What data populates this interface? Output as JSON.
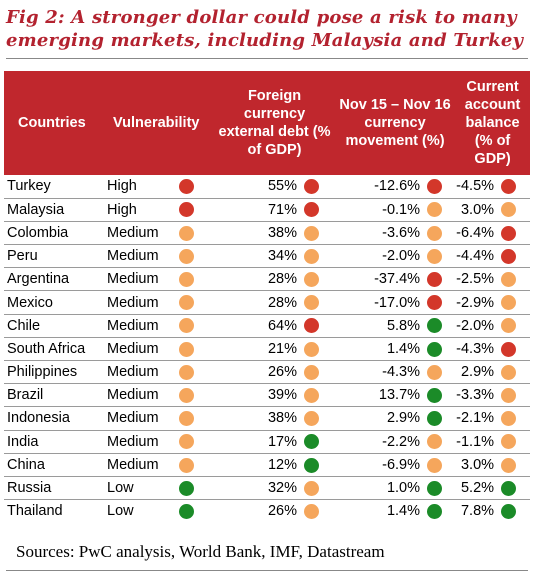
{
  "title": "Fig 2: A stronger dollar could pose a risk to many emerging markets, including Malaysia and Turkey",
  "headers": {
    "countries": "Countries",
    "vulnerability": "Vulnerability",
    "debt": "Foreign currency external debt (% of GDP)",
    "currency": "Nov 15 – Nov 16 currency movement (%)",
    "account": "Current account balance (% of GDP)"
  },
  "colors": {
    "red": "#d3372a",
    "amber": "#f5a65c",
    "green": "#1b8b28",
    "header": "#c0272d",
    "title": "#b3222f"
  },
  "rows": [
    {
      "country": "Turkey",
      "vulnerability": "High",
      "vuln_dot": "red",
      "debt": "55%",
      "debt_dot": "red",
      "currency": "-12.6%",
      "currency_dot": "red",
      "account": "-4.5%",
      "account_dot": "red"
    },
    {
      "country": "Malaysia",
      "vulnerability": "High",
      "vuln_dot": "red",
      "debt": "71%",
      "debt_dot": "red",
      "currency": "-0.1%",
      "currency_dot": "amber",
      "account": "3.0%",
      "account_dot": "amber"
    },
    {
      "country": "Colombia",
      "vulnerability": "Medium",
      "vuln_dot": "amber",
      "debt": "38%",
      "debt_dot": "amber",
      "currency": "-3.6%",
      "currency_dot": "amber",
      "account": "-6.4%",
      "account_dot": "red"
    },
    {
      "country": "Peru",
      "vulnerability": "Medium",
      "vuln_dot": "amber",
      "debt": "34%",
      "debt_dot": "amber",
      "currency": "-2.0%",
      "currency_dot": "amber",
      "account": "-4.4%",
      "account_dot": "red"
    },
    {
      "country": "Argentina",
      "vulnerability": "Medium",
      "vuln_dot": "amber",
      "debt": "28%",
      "debt_dot": "amber",
      "currency": "-37.4%",
      "currency_dot": "red",
      "account": "-2.5%",
      "account_dot": "amber"
    },
    {
      "country": "Mexico",
      "vulnerability": "Medium",
      "vuln_dot": "amber",
      "debt": "28%",
      "debt_dot": "amber",
      "currency": "-17.0%",
      "currency_dot": "red",
      "account": "-2.9%",
      "account_dot": "amber"
    },
    {
      "country": "Chile",
      "vulnerability": "Medium",
      "vuln_dot": "amber",
      "debt": "64%",
      "debt_dot": "red",
      "currency": "5.8%",
      "currency_dot": "green",
      "account": "-2.0%",
      "account_dot": "amber"
    },
    {
      "country": "South Africa",
      "vulnerability": "Medium",
      "vuln_dot": "amber",
      "debt": "21%",
      "debt_dot": "amber",
      "currency": "1.4%",
      "currency_dot": "green",
      "account": "-4.3%",
      "account_dot": "red"
    },
    {
      "country": "Philippines",
      "vulnerability": "Medium",
      "vuln_dot": "amber",
      "debt": "26%",
      "debt_dot": "amber",
      "currency": "-4.3%",
      "currency_dot": "amber",
      "account": "2.9%",
      "account_dot": "amber"
    },
    {
      "country": "Brazil",
      "vulnerability": "Medium",
      "vuln_dot": "amber",
      "debt": "39%",
      "debt_dot": "amber",
      "currency": "13.7%",
      "currency_dot": "green",
      "account": "-3.3%",
      "account_dot": "amber"
    },
    {
      "country": "Indonesia",
      "vulnerability": "Medium",
      "vuln_dot": "amber",
      "debt": "38%",
      "debt_dot": "amber",
      "currency": "2.9%",
      "currency_dot": "green",
      "account": "-2.1%",
      "account_dot": "amber"
    },
    {
      "country": "India",
      "vulnerability": "Medium",
      "vuln_dot": "amber",
      "debt": "17%",
      "debt_dot": "green",
      "currency": "-2.2%",
      "currency_dot": "amber",
      "account": "-1.1%",
      "account_dot": "amber"
    },
    {
      "country": "China",
      "vulnerability": "Medium",
      "vuln_dot": "amber",
      "debt": "12%",
      "debt_dot": "green",
      "currency": "-6.9%",
      "currency_dot": "amber",
      "account": "3.0%",
      "account_dot": "amber"
    },
    {
      "country": "Russia",
      "vulnerability": "Low",
      "vuln_dot": "green",
      "debt": "32%",
      "debt_dot": "amber",
      "currency": "1.0%",
      "currency_dot": "green",
      "account": "5.2%",
      "account_dot": "green"
    },
    {
      "country": "Thailand",
      "vulnerability": "Low",
      "vuln_dot": "green",
      "debt": "26%",
      "debt_dot": "amber",
      "currency": "1.4%",
      "currency_dot": "green",
      "account": "7.8%",
      "account_dot": "green"
    }
  ],
  "sources": "Sources: PwC analysis, World Bank, IMF, Datastream"
}
